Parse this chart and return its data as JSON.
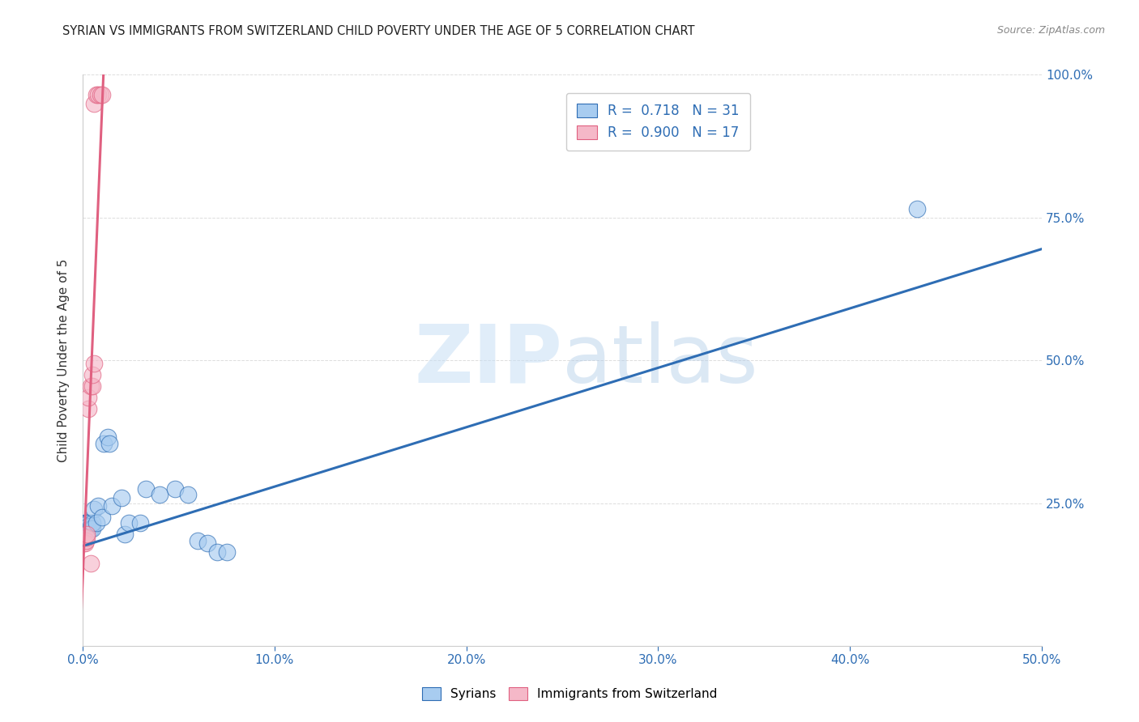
{
  "title": "SYRIAN VS IMMIGRANTS FROM SWITZERLAND CHILD POVERTY UNDER THE AGE OF 5 CORRELATION CHART",
  "source": "Source: ZipAtlas.com",
  "ylabel": "Child Poverty Under the Age of 5",
  "xlim": [
    0,
    0.5
  ],
  "ylim": [
    0,
    1.0
  ],
  "blue_R": "0.718",
  "blue_N": "31",
  "pink_R": "0.900",
  "pink_N": "17",
  "blue_color": "#A8CCF0",
  "pink_color": "#F5B8C8",
  "blue_line_color": "#2E6DB4",
  "pink_line_color": "#E06080",
  "blue_scatter": [
    [
      0.001,
      0.215
    ],
    [
      0.001,
      0.215
    ],
    [
      0.002,
      0.215
    ],
    [
      0.002,
      0.215
    ],
    [
      0.003,
      0.215
    ],
    [
      0.003,
      0.21
    ],
    [
      0.004,
      0.21
    ],
    [
      0.004,
      0.205
    ],
    [
      0.005,
      0.205
    ],
    [
      0.005,
      0.215
    ],
    [
      0.006,
      0.24
    ],
    [
      0.007,
      0.215
    ],
    [
      0.008,
      0.245
    ],
    [
      0.01,
      0.225
    ],
    [
      0.011,
      0.355
    ],
    [
      0.013,
      0.365
    ],
    [
      0.014,
      0.355
    ],
    [
      0.015,
      0.245
    ],
    [
      0.02,
      0.26
    ],
    [
      0.022,
      0.195
    ],
    [
      0.024,
      0.215
    ],
    [
      0.03,
      0.215
    ],
    [
      0.033,
      0.275
    ],
    [
      0.04,
      0.265
    ],
    [
      0.048,
      0.275
    ],
    [
      0.055,
      0.265
    ],
    [
      0.06,
      0.185
    ],
    [
      0.065,
      0.18
    ],
    [
      0.07,
      0.165
    ],
    [
      0.075,
      0.165
    ],
    [
      0.435,
      0.765
    ]
  ],
  "pink_scatter": [
    [
      0.0005,
      0.18
    ],
    [
      0.001,
      0.18
    ],
    [
      0.0015,
      0.185
    ],
    [
      0.002,
      0.19
    ],
    [
      0.002,
      0.195
    ],
    [
      0.003,
      0.415
    ],
    [
      0.003,
      0.435
    ],
    [
      0.004,
      0.455
    ],
    [
      0.004,
      0.145
    ],
    [
      0.005,
      0.455
    ],
    [
      0.005,
      0.475
    ],
    [
      0.006,
      0.495
    ],
    [
      0.006,
      0.95
    ],
    [
      0.007,
      0.965
    ],
    [
      0.008,
      0.965
    ],
    [
      0.009,
      0.965
    ],
    [
      0.01,
      0.965
    ]
  ],
  "blue_line_x": [
    0.0,
    0.5
  ],
  "blue_line_y": [
    0.175,
    0.695
  ],
  "pink_line_x": [
    -0.001,
    0.011
  ],
  "pink_line_y": [
    0.04,
    1.02
  ],
  "watermark_zip": "ZIP",
  "watermark_atlas": "atlas",
  "title_fontsize": 10.5,
  "tick_color": "#2E6DB4",
  "ylabel_color": "#333333"
}
